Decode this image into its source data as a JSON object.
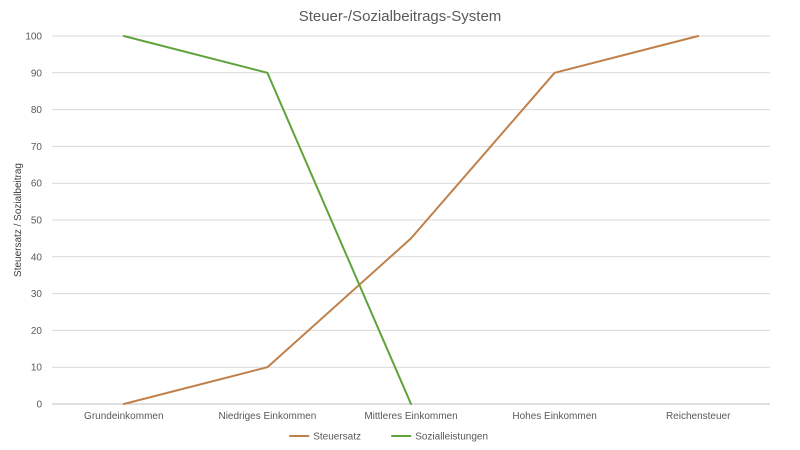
{
  "chart_data": {
    "type": "line",
    "title": "Steuer-/Sozialbeitrags-System",
    "xlabel": "",
    "ylabel": "Steuersatz / Sozialbeitrag",
    "categories": [
      "Grundeinkommen",
      "Niedriges Einkommen",
      "Mittleres Einkommen",
      "Hohes Einkommen",
      "Reichensteuer"
    ],
    "ylim": [
      0,
      100
    ],
    "yticks": [
      0,
      10,
      20,
      30,
      40,
      50,
      60,
      70,
      80,
      90,
      100
    ],
    "grid": true,
    "legend": "bottom",
    "series": [
      {
        "name": "Steuersatz",
        "color": "#c0804a",
        "values": [
          0,
          10,
          45,
          90,
          100
        ]
      },
      {
        "name": "Sozialleistungen",
        "color": "#5ea33c",
        "values": [
          100,
          90,
          0,
          null,
          null
        ]
      }
    ]
  }
}
